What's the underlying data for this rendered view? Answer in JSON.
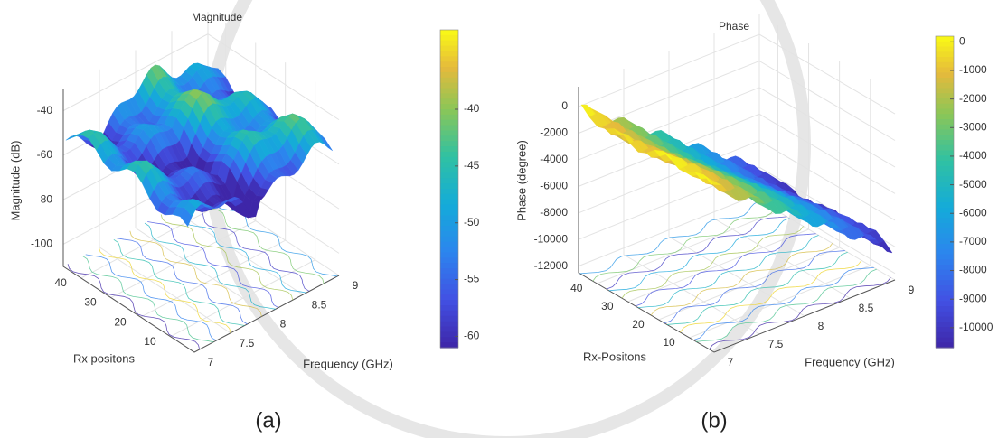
{
  "chart_data": [
    {
      "type": "surface3d",
      "title": "Magnitude",
      "zlabel": "Magnitude (dB)",
      "xlabel": "Frequency (GHz)",
      "ylabel": "Rx positons",
      "xlim": [
        7,
        9
      ],
      "xticks": [
        7,
        7.5,
        8,
        8.5,
        9
      ],
      "ylim": [
        2,
        46
      ],
      "yticks": [
        10,
        20,
        30,
        40
      ],
      "zlim": [
        -110,
        -30
      ],
      "zticks": [
        -100,
        -80,
        -60,
        -40
      ],
      "clim": [
        -61,
        -33
      ],
      "cticks": [
        -60,
        -55,
        -50,
        -45,
        -40
      ],
      "colormap": "parula",
      "grid": true,
      "caption": "(a)"
    },
    {
      "type": "surface3d",
      "title": "Phase",
      "zlabel": "Phase (degree)",
      "xlabel": "Frequency (GHz)",
      "ylabel": "Rx-Positons",
      "xlim": [
        7,
        9
      ],
      "xticks": [
        7,
        7.5,
        8,
        8.5,
        9
      ],
      "ylim": [
        2,
        46
      ],
      "yticks": [
        10,
        20,
        30,
        40
      ],
      "zlim": [
        -12500,
        1500
      ],
      "zticks": [
        -12000,
        -10000,
        -8000,
        -6000,
        -4000,
        -2000,
        0
      ],
      "clim": [
        -10700,
        200
      ],
      "cticks": [
        -10000,
        -9000,
        -8000,
        -7000,
        -6000,
        -5000,
        -4000,
        -3000,
        -2000,
        -1000,
        0
      ],
      "colormap": "parula",
      "grid": true,
      "caption": "(b)"
    }
  ]
}
